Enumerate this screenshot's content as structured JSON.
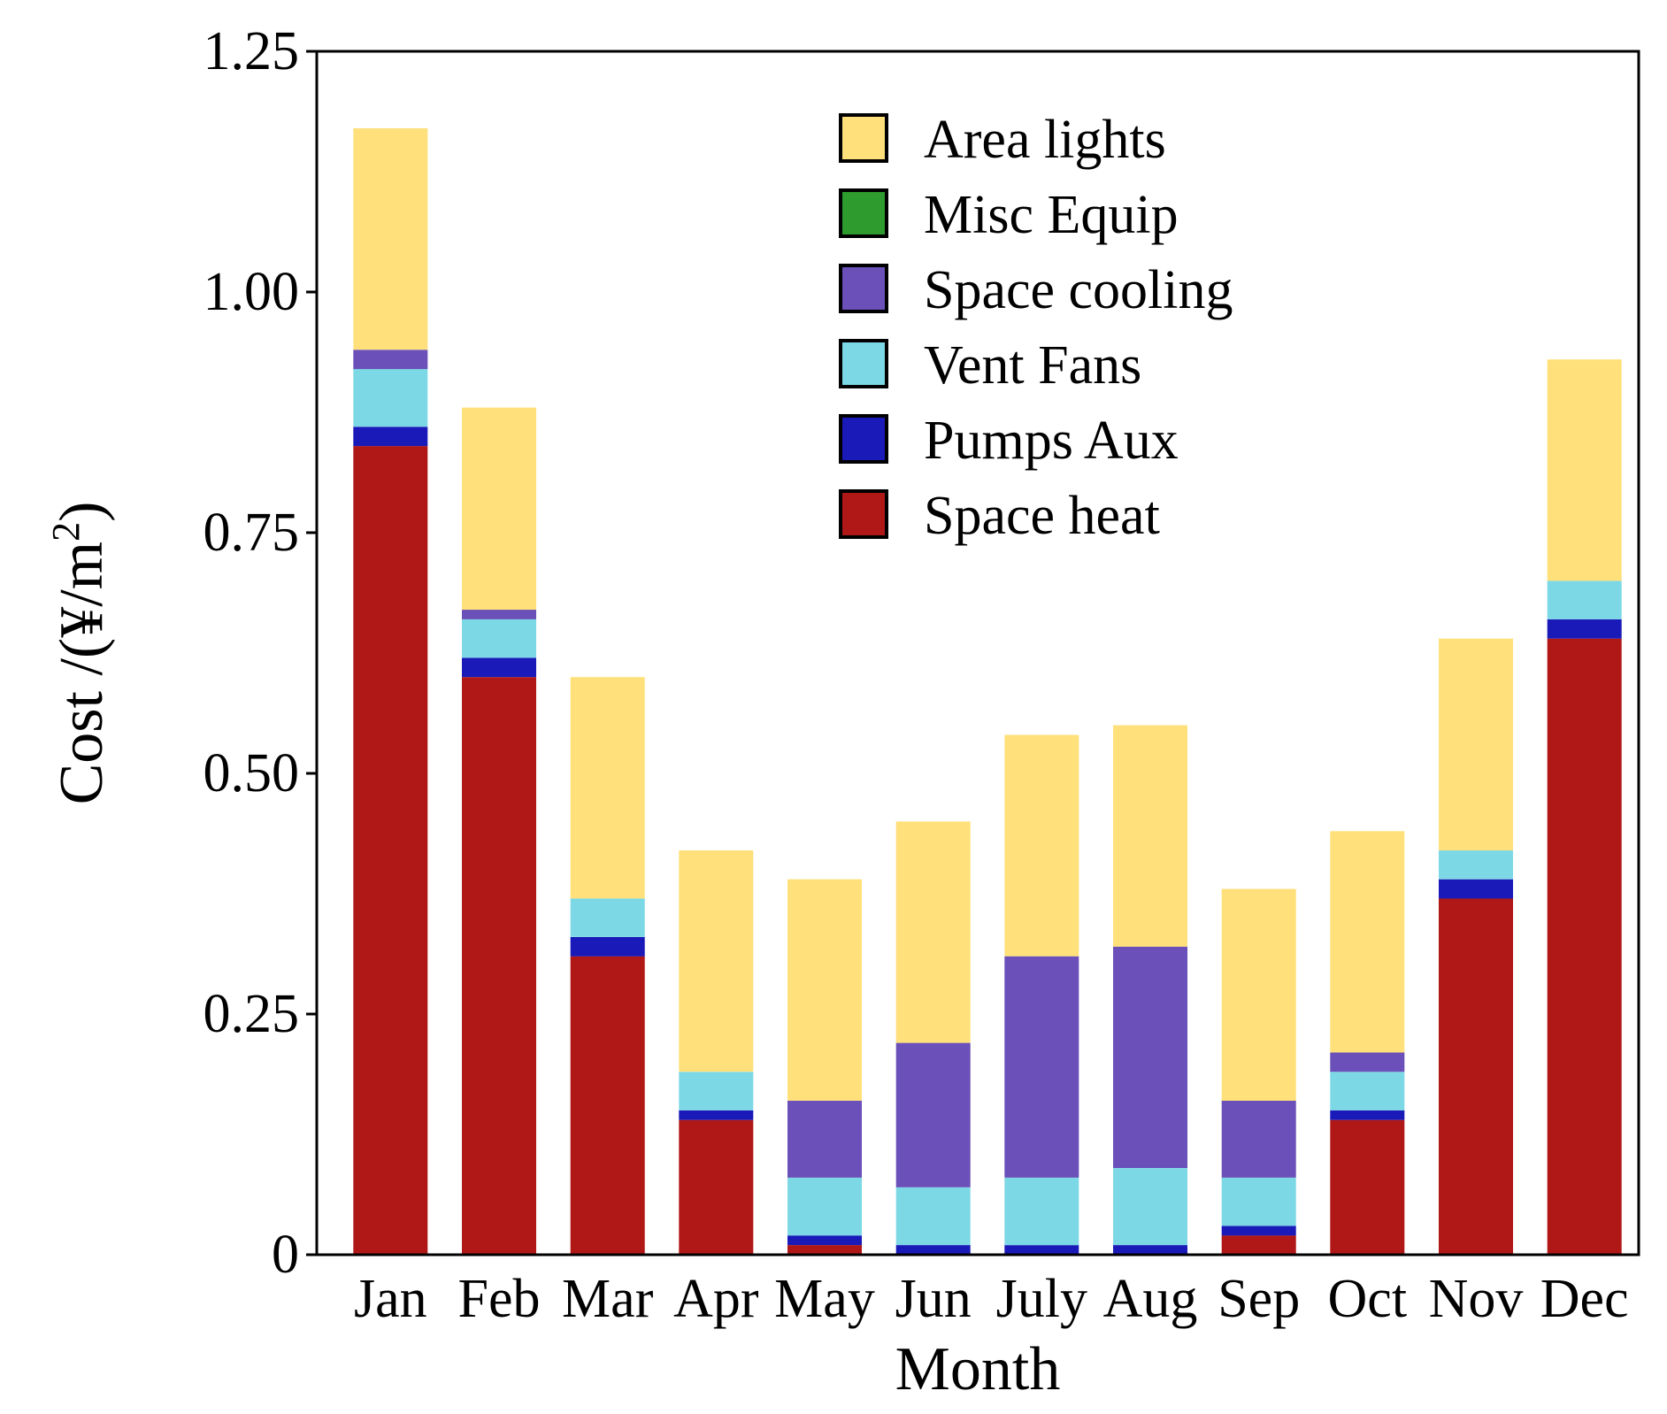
{
  "chart_data": {
    "type": "bar",
    "stacked": true,
    "title": "",
    "xlabel": "Month",
    "ylabel": "Cost /(¥/m",
    "ylabel_superscript": "2",
    "ylabel_close": ")",
    "ylim": [
      0,
      1.25
    ],
    "yticks": [
      {
        "value": 0,
        "label": "0"
      },
      {
        "value": 0.25,
        "label": "0.25"
      },
      {
        "value": 0.5,
        "label": "0.50"
      },
      {
        "value": 0.75,
        "label": "0.75"
      },
      {
        "value": 1.0,
        "label": "1.00"
      },
      {
        "value": 1.25,
        "label": "1.25"
      }
    ],
    "grid": false,
    "legend_position": "top-center",
    "categories": [
      "Jan",
      "Feb",
      "Mar",
      "Apr",
      "May",
      "Jun",
      "July",
      "Aug",
      "Sep",
      "Oct",
      "Nov",
      "Dec"
    ],
    "series": [
      {
        "name": "Space heat",
        "color": "#B01818",
        "values": [
          0.84,
          0.6,
          0.31,
          0.14,
          0.01,
          0.0,
          0.0,
          0.0,
          0.02,
          0.14,
          0.37,
          0.64
        ]
      },
      {
        "name": "Pumps Aux",
        "color": "#1A1AB8",
        "values": [
          0.02,
          0.02,
          0.02,
          0.01,
          0.01,
          0.01,
          0.01,
          0.01,
          0.01,
          0.01,
          0.02,
          0.02
        ]
      },
      {
        "name": "Vent Fans",
        "color": "#7DD8E6",
        "values": [
          0.06,
          0.04,
          0.04,
          0.04,
          0.06,
          0.06,
          0.07,
          0.08,
          0.05,
          0.04,
          0.03,
          0.04
        ]
      },
      {
        "name": "Space cooling",
        "color": "#6A50B8",
        "values": [
          0.02,
          0.01,
          0.0,
          0.0,
          0.08,
          0.15,
          0.23,
          0.23,
          0.08,
          0.02,
          0.0,
          0.0
        ]
      },
      {
        "name": "Misc Equip",
        "color": "#2E9B2E",
        "values": [
          0,
          0,
          0,
          0,
          0,
          0,
          0,
          0,
          0,
          0,
          0,
          0
        ]
      },
      {
        "name": "Area lights",
        "color": "#FFE07A",
        "values": [
          0.23,
          0.21,
          0.23,
          0.23,
          0.23,
          0.23,
          0.23,
          0.23,
          0.22,
          0.23,
          0.22,
          0.23
        ]
      }
    ],
    "legend_order": [
      "Area lights",
      "Misc Equip",
      "Space cooling",
      "Vent Fans",
      "Pumps Aux",
      "Space heat"
    ]
  }
}
